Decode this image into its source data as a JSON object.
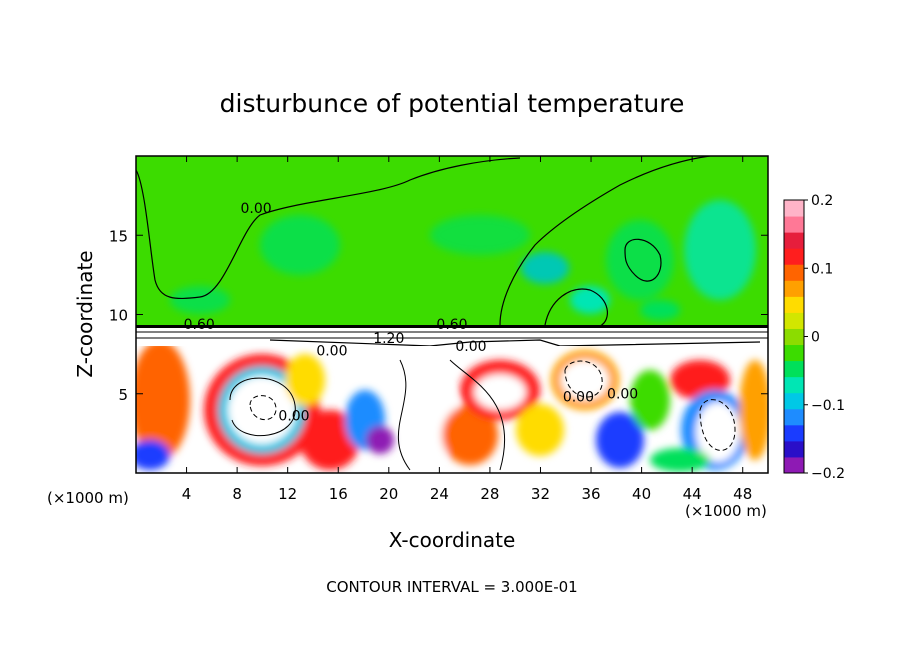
{
  "chart_data": {
    "type": "heatmap",
    "title": "disturbunce of potential temperature",
    "xlabel": "X-coordinate",
    "ylabel": "Z-coordinate",
    "x_unit": "(×1000 m)",
    "x_unit_right": "(×1000 m)",
    "xlim": [
      0,
      50
    ],
    "ylim": [
      0,
      20
    ],
    "x_ticks": [
      4,
      8,
      12,
      16,
      20,
      24,
      28,
      32,
      36,
      40,
      44,
      48
    ],
    "y_ticks": [
      5,
      10,
      15
    ],
    "colorbar": {
      "range": [
        -0.2,
        0.2
      ],
      "ticks": [
        "0.2",
        "0.1",
        "0",
        "−0.1",
        "−0.2"
      ],
      "tick_values": [
        0.2,
        0.1,
        0,
        -0.1,
        -0.2
      ],
      "colors": [
        "#8e1ab4",
        "#2a0fc8",
        "#1a3cff",
        "#1e8cff",
        "#00c8e6",
        "#00e6b4",
        "#00e05a",
        "#3cdc00",
        "#8cdc00",
        "#d2e600",
        "#ffdc00",
        "#ffa000",
        "#ff6400",
        "#ff1e1e",
        "#e61e3c",
        "#ff7896",
        "#ffb4c8"
      ],
      "neutral_color": "#3cdc00"
    },
    "contour_labels": [
      {
        "text": "0.00",
        "x": 19,
        "z": 16.4
      },
      {
        "text": "0.60",
        "x": 10,
        "z": 9.1
      },
      {
        "text": "0.60",
        "x": 50,
        "z": 9.1
      },
      {
        "text": "1.20",
        "x": 40,
        "z": 8.2
      },
      {
        "text": "0.00",
        "x": 53,
        "z": 7.7
      },
      {
        "text": "0.00",
        "x": 31,
        "z": 7.4
      },
      {
        "text": "0.00",
        "x": 25,
        "z": 3.3
      },
      {
        "text": "0.00",
        "x": 70,
        "z": 4.5
      },
      {
        "text": "0.00",
        "x": 77,
        "z": 4.7
      }
    ],
    "footer": "CONTOUR INTERVAL = 3.000E-01"
  }
}
